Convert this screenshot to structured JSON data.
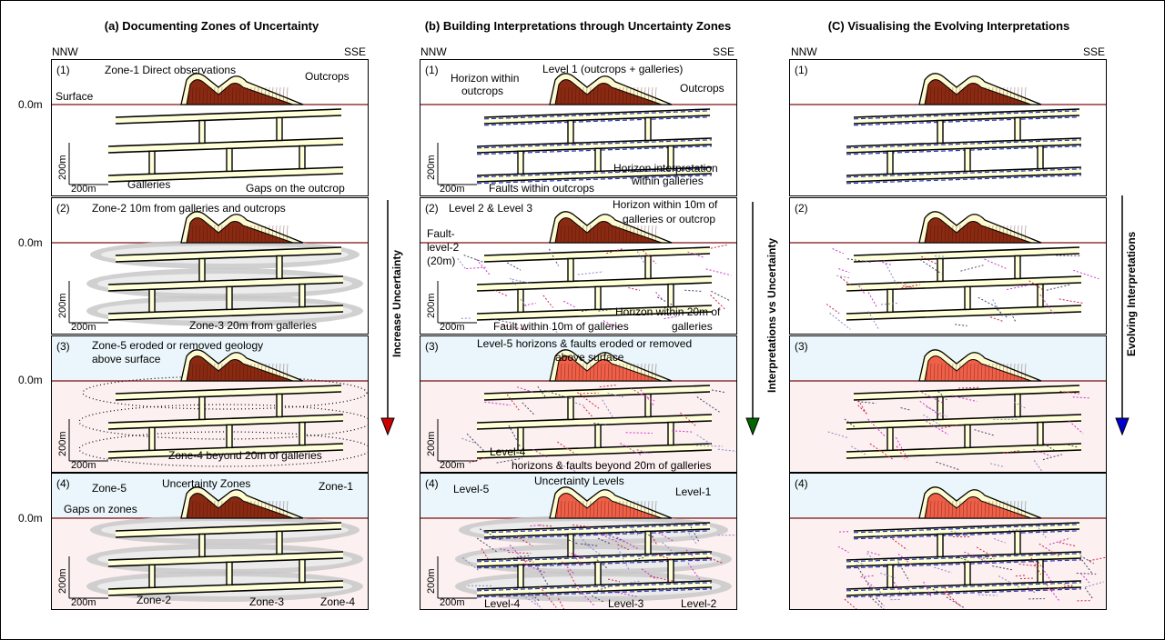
{
  "columns": [
    {
      "title": "(a) Documenting Zones of Uncertainty"
    },
    {
      "title": "(b) Building Interpretations through Uncertainty Zones"
    },
    {
      "title": "(C) Visualising the Evolving Interpretations"
    }
  ],
  "directions": {
    "left": "NNW",
    "right": "SSE"
  },
  "depth_label": "0.0m",
  "panel_numbers": [
    "(1)",
    "(2)",
    "(3)",
    "(4)"
  ],
  "scale": {
    "vertical": "200m",
    "horizontal": "200m"
  },
  "arrows": {
    "a_b": "Increase Uncertainty",
    "b_c": "Interpretations vs Uncertainty",
    "c": "Evolving Interpretations"
  },
  "arrow_colors": {
    "a_b": "#cc0000",
    "b_c": "#006600",
    "c": "#0000cc"
  },
  "labels_a": {
    "p1_zone1": "Zone-1 Direct observations",
    "p1_outcrops": "Outcrops",
    "p1_surface": "Surface",
    "p1_galleries": "Galleries",
    "p1_gaps": "Gaps on the outcrop",
    "p2_zone2": "Zone-2 10m from galleries and outcrops",
    "p2_zone3": "Zone-3 20m from galleries",
    "p3_zone5_l1": "Zone-5 eroded or removed geology",
    "p3_zone5_l2": "above surface",
    "p3_zone4": "Zone-4 beyond 20m of galleries",
    "p4_zone5": "Zone-5",
    "p4_title": "Uncertainty Zones",
    "p4_zone1": "Zone-1",
    "p4_gaps": "Gaps on zones",
    "p4_zone2": "Zone-2",
    "p4_zone3": "Zone-3",
    "p4_zone4": "Zone-4"
  },
  "labels_b": {
    "p1_level1": "Level 1 (outcrops + galleries)",
    "p1_horizon_l1": "Horizon within",
    "p1_horizon_l2": "outcrops",
    "p1_outcrops": "Outcrops",
    "p1_hig_l1": "Horizon interpretation",
    "p1_hig_l2": "within galleries",
    "p1_faults": "Faults within outcrops",
    "p2_level23": "Level 2 & Level 3",
    "p2_h10_l1": "Horizon within 10m of",
    "p2_h10_l2": "galleries or outcrop",
    "p2_fault_l1": "Fault-",
    "p2_fault_l2": "level-2",
    "p2_fault_l3": "(20m)",
    "p2_h20_l1": "Horizon within 20m of",
    "p2_h20_l2": "galleries",
    "p2_f10": "Fault within 10m of galleries",
    "p3_level5_l1": "Level-5 horizons & faults eroded or removed",
    "p3_level5_l2": "above surface",
    "p3_level4_l1": "Level-4",
    "p3_level4_l2": "horizons & faults beyond 20m of galleries",
    "p4_title": "Uncertainty Levels",
    "p4_level5": "Level-5",
    "p4_level1": "Level-1",
    "p4_level4": "Level-4",
    "p4_level3": "Level-3",
    "p4_level2": "Level-2"
  }
}
